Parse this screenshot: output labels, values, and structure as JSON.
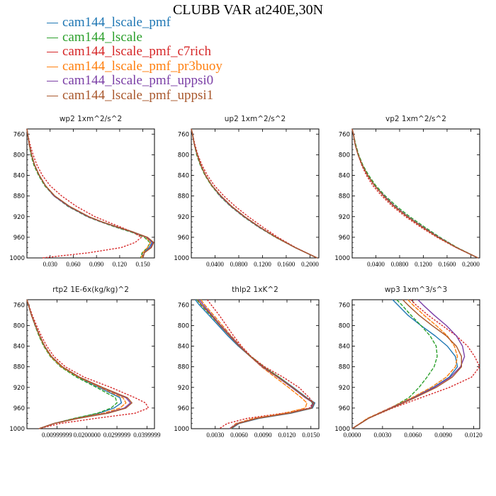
{
  "figure": {
    "title": "CLUBB VAR at240E,30N",
    "legend": [
      {
        "name": "cam144_lscale_pmf",
        "color": "#1f77b4"
      },
      {
        "name": "cam144_lscale",
        "color": "#2ca02c"
      },
      {
        "name": "cam144_lscale_pmf_c7rich",
        "color": "#d62728"
      },
      {
        "name": "cam144_lscale_pmf_pr3buoy",
        "color": "#ff7f0e"
      },
      {
        "name": "cam144_lscale_pmf_uppsi0",
        "color": "#7b3fa6"
      },
      {
        "name": "cam144_lscale_pmf_uppsi1",
        "color": "#a9582d"
      }
    ]
  },
  "chart_data": [
    {
      "type": "line",
      "title": "wp2   1xm^2/s^2",
      "xlim": [
        0,
        0.165
      ],
      "ylim": [
        1000,
        750
      ],
      "xticks": [
        0.03,
        0.06,
        0.09,
        0.12,
        0.15
      ],
      "xtick_labels": [
        "0.030",
        "0.060",
        "0.090",
        "0.120",
        "0.150"
      ],
      "yticks": [
        760,
        800,
        840,
        880,
        920,
        960,
        1000
      ],
      "y": [
        750,
        760,
        780,
        800,
        820,
        840,
        860,
        880,
        900,
        920,
        930,
        940,
        950,
        960,
        970,
        980,
        990,
        1000
      ],
      "series": [
        {
          "name": "cam144_lscale_pmf",
          "values": [
            0.0,
            0.001,
            0.003,
            0.006,
            0.01,
            0.016,
            0.024,
            0.036,
            0.055,
            0.08,
            0.097,
            0.117,
            0.138,
            0.155,
            0.162,
            0.158,
            0.15,
            0.148
          ]
        },
        {
          "name": "cam144_lscale",
          "values": [
            0.0,
            0.001,
            0.003,
            0.005,
            0.009,
            0.015,
            0.023,
            0.035,
            0.053,
            0.078,
            0.095,
            0.114,
            0.135,
            0.152,
            0.159,
            0.156,
            0.149,
            0.147
          ]
        },
        {
          "name": "cam144_lscale_pmf_c7rich",
          "values": [
            0.0,
            0.001,
            0.004,
            0.008,
            0.013,
            0.02,
            0.03,
            0.045,
            0.064,
            0.088,
            0.104,
            0.121,
            0.137,
            0.148,
            0.14,
            0.122,
            0.08,
            0.02
          ]
        },
        {
          "name": "cam144_lscale_pmf_pr3buoy",
          "values": [
            0.0,
            0.001,
            0.003,
            0.006,
            0.01,
            0.016,
            0.024,
            0.036,
            0.055,
            0.08,
            0.097,
            0.116,
            0.137,
            0.154,
            0.16,
            0.156,
            0.15,
            0.148
          ]
        },
        {
          "name": "cam144_lscale_pmf_uppsi0",
          "values": [
            0.0,
            0.001,
            0.003,
            0.006,
            0.01,
            0.016,
            0.024,
            0.035,
            0.054,
            0.079,
            0.096,
            0.116,
            0.137,
            0.155,
            0.163,
            0.16,
            0.152,
            0.15
          ]
        },
        {
          "name": "cam144_lscale_pmf_uppsi1",
          "values": [
            0.0,
            0.001,
            0.003,
            0.006,
            0.01,
            0.016,
            0.024,
            0.036,
            0.055,
            0.08,
            0.097,
            0.117,
            0.138,
            0.156,
            0.164,
            0.161,
            0.152,
            0.15
          ]
        }
      ]
    },
    {
      "type": "line",
      "title": "up2   1xm^2/s^2",
      "xlim": [
        0,
        0.215
      ],
      "ylim": [
        1000,
        750
      ],
      "xticks": [
        0.04,
        0.08,
        0.12,
        0.16,
        0.2
      ],
      "xtick_labels": [
        "0.0400",
        "0.0800",
        "0.1200",
        "0.1600",
        "0.2000"
      ],
      "yticks": [
        760,
        800,
        840,
        880,
        920,
        960,
        1000
      ],
      "y": [
        750,
        760,
        780,
        800,
        820,
        840,
        860,
        880,
        900,
        920,
        940,
        960,
        980,
        1000
      ],
      "series": [
        {
          "name": "cam144_lscale_pmf",
          "values": [
            0.0,
            0.002,
            0.005,
            0.01,
            0.016,
            0.024,
            0.035,
            0.05,
            0.068,
            0.09,
            0.115,
            0.143,
            0.175,
            0.212
          ]
        },
        {
          "name": "cam144_lscale",
          "values": [
            0.0,
            0.002,
            0.005,
            0.009,
            0.015,
            0.023,
            0.034,
            0.048,
            0.066,
            0.088,
            0.113,
            0.142,
            0.175,
            0.212
          ]
        },
        {
          "name": "cam144_lscale_pmf_c7rich",
          "values": [
            0.0,
            0.002,
            0.006,
            0.011,
            0.018,
            0.027,
            0.039,
            0.055,
            0.074,
            0.096,
            0.12,
            0.146,
            0.176,
            0.212
          ]
        },
        {
          "name": "cam144_lscale_pmf_pr3buoy",
          "values": [
            0.0,
            0.002,
            0.005,
            0.01,
            0.016,
            0.024,
            0.035,
            0.05,
            0.068,
            0.09,
            0.115,
            0.143,
            0.175,
            0.212
          ]
        },
        {
          "name": "cam144_lscale_pmf_uppsi0",
          "values": [
            0.0,
            0.002,
            0.005,
            0.01,
            0.016,
            0.024,
            0.035,
            0.049,
            0.067,
            0.089,
            0.114,
            0.143,
            0.175,
            0.212
          ]
        },
        {
          "name": "cam144_lscale_pmf_uppsi1",
          "values": [
            0.0,
            0.002,
            0.005,
            0.01,
            0.016,
            0.024,
            0.035,
            0.05,
            0.068,
            0.09,
            0.115,
            0.143,
            0.175,
            0.212
          ]
        }
      ]
    },
    {
      "type": "line",
      "title": "vp2   1xm^2/s^2",
      "xlim": [
        0,
        0.215
      ],
      "ylim": [
        1000,
        750
      ],
      "xticks": [
        0.04,
        0.08,
        0.12,
        0.16,
        0.2
      ],
      "xtick_labels": [
        "0.0400",
        "0.0800",
        "0.1200",
        "0.1600",
        "0.2000"
      ],
      "yticks": [
        760,
        800,
        840,
        880,
        920,
        960,
        1000
      ],
      "y": [
        750,
        760,
        780,
        800,
        820,
        840,
        860,
        880,
        900,
        920,
        940,
        960,
        980,
        1000
      ],
      "series": [
        {
          "name": "cam144_lscale_pmf",
          "values": [
            0.0,
            0.002,
            0.005,
            0.01,
            0.017,
            0.026,
            0.038,
            0.053,
            0.071,
            0.093,
            0.118,
            0.145,
            0.176,
            0.212
          ]
        },
        {
          "name": "cam144_lscale",
          "values": [
            0.0,
            0.002,
            0.006,
            0.011,
            0.018,
            0.028,
            0.04,
            0.056,
            0.075,
            0.097,
            0.122,
            0.148,
            0.177,
            0.212
          ]
        },
        {
          "name": "cam144_lscale_pmf_c7rich",
          "values": [
            0.0,
            0.002,
            0.005,
            0.01,
            0.016,
            0.024,
            0.035,
            0.05,
            0.068,
            0.09,
            0.115,
            0.143,
            0.175,
            0.212
          ]
        },
        {
          "name": "cam144_lscale_pmf_pr3buoy",
          "values": [
            0.0,
            0.002,
            0.005,
            0.01,
            0.017,
            0.026,
            0.038,
            0.053,
            0.071,
            0.093,
            0.118,
            0.145,
            0.176,
            0.212
          ]
        },
        {
          "name": "cam144_lscale_pmf_uppsi0",
          "values": [
            0.0,
            0.002,
            0.005,
            0.01,
            0.017,
            0.026,
            0.038,
            0.054,
            0.072,
            0.094,
            0.119,
            0.146,
            0.176,
            0.212
          ]
        },
        {
          "name": "cam144_lscale_pmf_uppsi1",
          "values": [
            0.0,
            0.002,
            0.005,
            0.01,
            0.017,
            0.026,
            0.038,
            0.053,
            0.071,
            0.093,
            0.118,
            0.145,
            0.176,
            0.212
          ]
        }
      ]
    },
    {
      "type": "line",
      "title": "rtp2   1E-6x(kg/kg)^2",
      "xlim": [
        0,
        0.0425
      ],
      "ylim": [
        1000,
        750
      ],
      "xticks": [
        0.01,
        0.02,
        0.03,
        0.04
      ],
      "xtick_labels": [
        "0.00999999",
        "0.0200000",
        "0.0299999",
        "0.0399999"
      ],
      "yticks": [
        760,
        800,
        840,
        880,
        920,
        960,
        1000
      ],
      "y": [
        750,
        760,
        780,
        800,
        820,
        840,
        860,
        880,
        900,
        920,
        940,
        950,
        960,
        970,
        980,
        990,
        1000
      ],
      "series": [
        {
          "name": "cam144_lscale_pmf",
          "values": [
            0.0,
            0.0005,
            0.0015,
            0.0028,
            0.0042,
            0.0058,
            0.008,
            0.0115,
            0.017,
            0.024,
            0.031,
            0.0315,
            0.029,
            0.024,
            0.016,
            0.009,
            0.004
          ]
        },
        {
          "name": "cam144_lscale",
          "values": [
            0.0,
            0.0005,
            0.0015,
            0.0027,
            0.004,
            0.0056,
            0.0078,
            0.0112,
            0.0165,
            0.0232,
            0.0295,
            0.03,
            0.028,
            0.0235,
            0.0158,
            0.009,
            0.004
          ]
        },
        {
          "name": "cam144_lscale_pmf_c7rich",
          "values": [
            0.0,
            0.0006,
            0.0018,
            0.0032,
            0.0048,
            0.0066,
            0.009,
            0.0128,
            0.019,
            0.028,
            0.036,
            0.0395,
            0.0405,
            0.036,
            0.023,
            0.011,
            0.004
          ]
        },
        {
          "name": "cam144_lscale_pmf_pr3buoy",
          "values": [
            0.0,
            0.0005,
            0.0015,
            0.0028,
            0.0042,
            0.0058,
            0.008,
            0.0115,
            0.0172,
            0.0245,
            0.032,
            0.033,
            0.031,
            0.0255,
            0.0165,
            0.009,
            0.004
          ]
        },
        {
          "name": "cam144_lscale_pmf_uppsi0",
          "values": [
            0.0,
            0.0005,
            0.0015,
            0.0028,
            0.0043,
            0.0059,
            0.0082,
            0.0118,
            0.0175,
            0.025,
            0.033,
            0.0345,
            0.0325,
            0.0265,
            0.017,
            0.009,
            0.004
          ]
        },
        {
          "name": "cam144_lscale_pmf_uppsi1",
          "values": [
            0.0,
            0.0005,
            0.0015,
            0.0028,
            0.0043,
            0.0059,
            0.0082,
            0.0118,
            0.0175,
            0.0252,
            0.0335,
            0.035,
            0.033,
            0.027,
            0.0172,
            0.009,
            0.004
          ]
        }
      ]
    },
    {
      "type": "line",
      "title": "thlp2   1xK^2",
      "xlim": [
        0,
        0.016
      ],
      "ylim": [
        1000,
        750
      ],
      "xticks": [
        0.003,
        0.006,
        0.009,
        0.012,
        0.015
      ],
      "xtick_labels": [
        "0.0030",
        "0.0060",
        "0.0090",
        "0.0120",
        "0.0150"
      ],
      "yticks": [
        760,
        800,
        840,
        880,
        920,
        960,
        1000
      ],
      "y": [
        750,
        760,
        780,
        800,
        820,
        840,
        860,
        880,
        900,
        920,
        940,
        950,
        960,
        970,
        980,
        990,
        1000
      ],
      "series": [
        {
          "name": "cam144_lscale_pmf",
          "values": [
            0.0005,
            0.001,
            0.0022,
            0.0034,
            0.0046,
            0.0059,
            0.0074,
            0.009,
            0.011,
            0.0128,
            0.0145,
            0.0155,
            0.0152,
            0.0125,
            0.0085,
            0.006,
            0.005
          ]
        },
        {
          "name": "cam144_lscale",
          "values": [
            0.0007,
            0.0012,
            0.0024,
            0.0036,
            0.0048,
            0.0061,
            0.0075,
            0.0091,
            0.011,
            0.0127,
            0.0144,
            0.0152,
            0.015,
            0.0122,
            0.0082,
            0.0058,
            0.005
          ]
        },
        {
          "name": "cam144_lscale_pmf_c7rich",
          "values": [
            0.002,
            0.0025,
            0.0035,
            0.0044,
            0.0053,
            0.0063,
            0.0075,
            0.0092,
            0.0115,
            0.0135,
            0.0148,
            0.0153,
            0.0148,
            0.0115,
            0.007,
            0.0045,
            0.0035
          ]
        },
        {
          "name": "cam144_lscale_pmf_pr3buoy",
          "values": [
            0.0012,
            0.0017,
            0.0028,
            0.0039,
            0.005,
            0.0062,
            0.0074,
            0.0088,
            0.0105,
            0.0122,
            0.0138,
            0.0145,
            0.0143,
            0.0117,
            0.0078,
            0.0056,
            0.0048
          ]
        },
        {
          "name": "cam144_lscale_pmf_uppsi0",
          "values": [
            0.001,
            0.0015,
            0.0026,
            0.0037,
            0.0049,
            0.0061,
            0.0074,
            0.0089,
            0.0108,
            0.0126,
            0.0143,
            0.0153,
            0.015,
            0.0122,
            0.0082,
            0.0058,
            0.0048
          ]
        },
        {
          "name": "cam144_lscale_pmf_uppsi1",
          "values": [
            0.0008,
            0.0013,
            0.0025,
            0.0036,
            0.0048,
            0.006,
            0.0074,
            0.009,
            0.0109,
            0.0127,
            0.0144,
            0.0154,
            0.0151,
            0.0123,
            0.0083,
            0.0059,
            0.0049
          ]
        }
      ]
    },
    {
      "type": "line",
      "title": "wp3   1xm^3/s^3",
      "xlim": [
        0,
        0.0126
      ],
      "ylim": [
        1000,
        750
      ],
      "xticks": [
        0,
        0.003,
        0.006,
        0.009,
        0.012
      ],
      "xtick_labels": [
        "0.0000",
        "0.0030",
        "0.0060",
        "0.0090",
        "0.0120"
      ],
      "yticks": [
        760,
        800,
        840,
        880,
        920,
        960,
        1000
      ],
      "y": [
        750,
        760,
        780,
        800,
        820,
        840,
        860,
        880,
        900,
        920,
        940,
        960,
        980,
        1000
      ],
      "series": [
        {
          "name": "cam144_lscale_pmf",
          "values": [
            0.004,
            0.0045,
            0.0055,
            0.0068,
            0.0082,
            0.0094,
            0.0102,
            0.0104,
            0.0096,
            0.008,
            0.006,
            0.0038,
            0.0016,
            0.0
          ]
        },
        {
          "name": "cam144_lscale",
          "values": [
            0.0044,
            0.0049,
            0.0058,
            0.0068,
            0.0077,
            0.0083,
            0.0084,
            0.0081,
            0.0074,
            0.0066,
            0.0056,
            0.0038,
            0.0016,
            0.0
          ]
        },
        {
          "name": "cam144_lscale_pmf_c7rich",
          "values": [
            0.0058,
            0.0063,
            0.0075,
            0.0089,
            0.0103,
            0.0114,
            0.0121,
            0.0126,
            0.0118,
            0.0096,
            0.0068,
            0.004,
            0.0016,
            0.0
          ]
        },
        {
          "name": "cam144_lscale_pmf_pr3buoy",
          "values": [
            0.0055,
            0.006,
            0.0071,
            0.0083,
            0.0094,
            0.0101,
            0.0104,
            0.0102,
            0.0093,
            0.0078,
            0.0059,
            0.0037,
            0.0015,
            0.0
          ]
        },
        {
          "name": "cam144_lscale_pmf_uppsi0",
          "values": [
            0.0065,
            0.007,
            0.0081,
            0.0093,
            0.0103,
            0.0109,
            0.0111,
            0.0107,
            0.0097,
            0.0081,
            0.0061,
            0.0038,
            0.0016,
            0.0
          ]
        },
        {
          "name": "cam144_lscale_pmf_uppsi1",
          "values": [
            0.005,
            0.0055,
            0.0066,
            0.0079,
            0.0093,
            0.0103,
            0.0108,
            0.0108,
            0.0099,
            0.0083,
            0.0062,
            0.0039,
            0.0016,
            0.0
          ]
        }
      ]
    }
  ]
}
